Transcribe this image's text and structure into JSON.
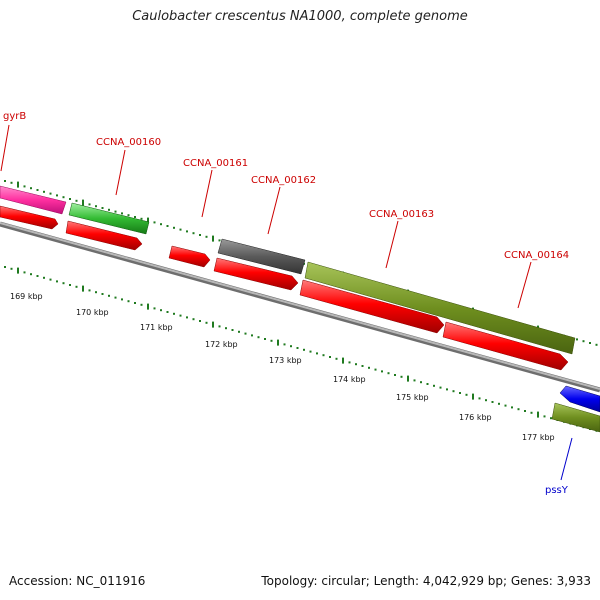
{
  "title": "Caulobacter crescentus NA1000, complete genome",
  "footer": {
    "accession": "Accession: NC_011916",
    "summary": "Topology: circular; Length: 4,042,929 bp; Genes: 3,933"
  },
  "colors": {
    "backbone": "#8c8c8c",
    "tick": "#1f7a1f",
    "label_red": "#cc0000",
    "label_blue": "#0000cc",
    "pink": "#ff2fa0",
    "green": "#33bb33",
    "red": "#ff0000",
    "gray": "#5a5a5a",
    "olive": "#6f8f1f",
    "blue": "#0000ee"
  },
  "gene_labels": [
    {
      "text": "gyrB",
      "color": "red"
    },
    {
      "text": "CCNA_00160",
      "color": "red"
    },
    {
      "text": "CCNA_00161",
      "color": "red"
    },
    {
      "text": "CCNA_00162",
      "color": "red"
    },
    {
      "text": "CCNA_00163",
      "color": "red"
    },
    {
      "text": "CCNA_00164",
      "color": "red"
    },
    {
      "text": "pssY",
      "color": "blue"
    }
  ],
  "scale_labels": [
    "169 kbp",
    "170 kbp",
    "171 kbp",
    "172 kbp",
    "173 kbp",
    "174 kbp",
    "175 kbp",
    "176 kbp",
    "177 kbp"
  ]
}
